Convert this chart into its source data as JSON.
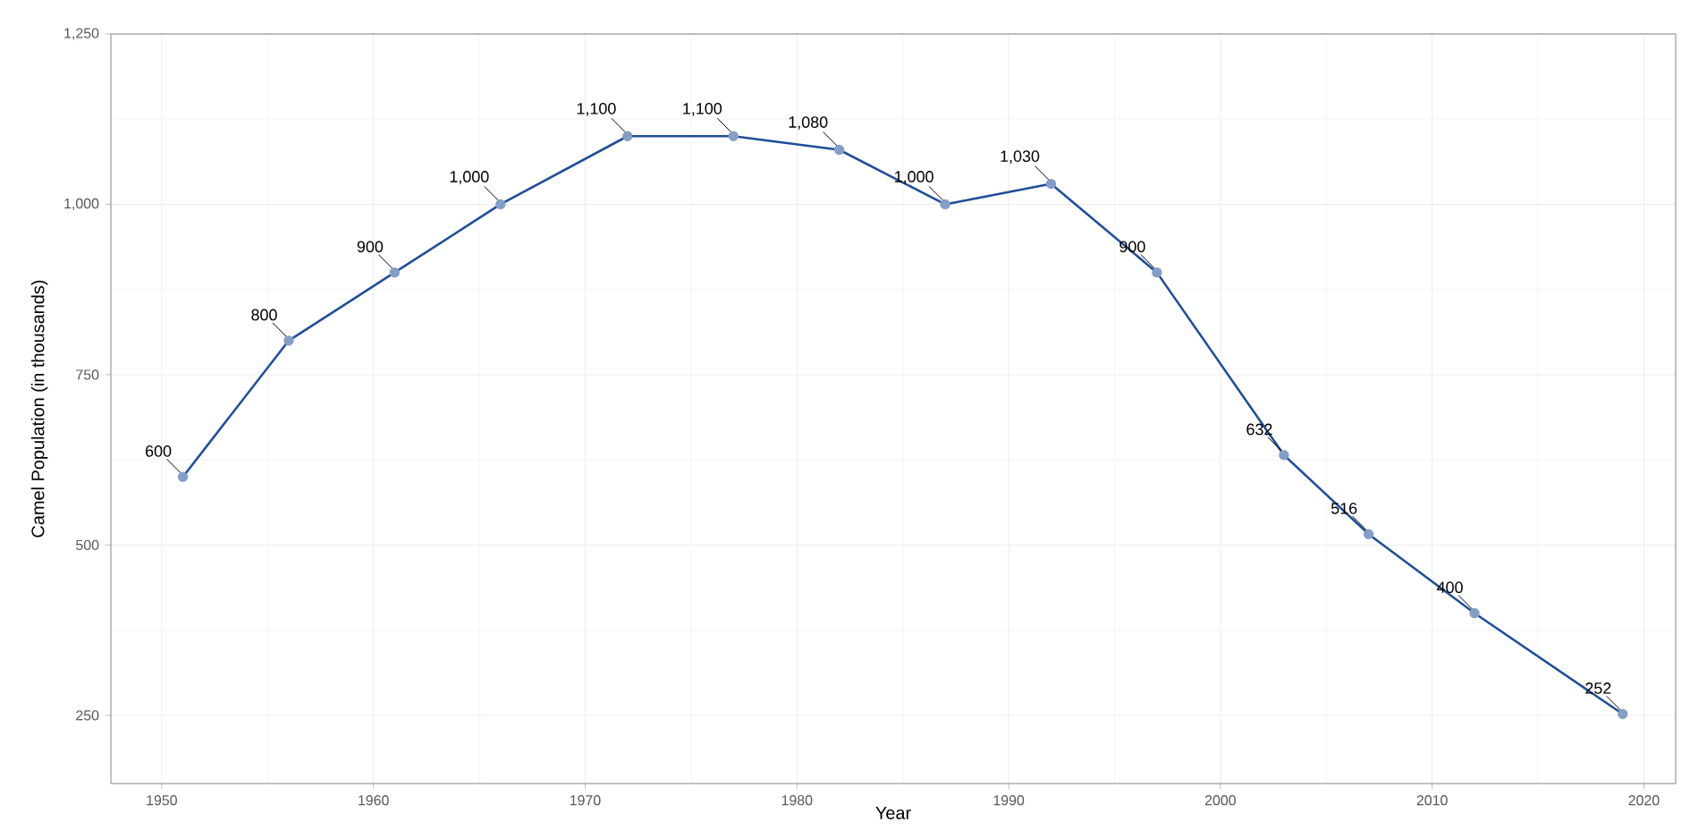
{
  "chart_data": {
    "type": "line",
    "xlabel": "Year",
    "ylabel": "Camel Population (in thousands)",
    "x": [
      1951,
      1956,
      1961,
      1966,
      1972,
      1977,
      1982,
      1987,
      1992,
      1997,
      2003,
      2007,
      2012,
      2019
    ],
    "series": [
      {
        "color": "#1f4e99",
        "values": [
          600,
          800,
          900,
          1000,
          1100,
          1100,
          1080,
          1000,
          1030,
          900,
          632,
          516,
          400,
          252
        ],
        "value_labels": [
          "600",
          "800",
          "900",
          "1,000",
          "1,100",
          "1,100",
          "1,080",
          "1,000",
          "1,030",
          "900",
          "632",
          "516",
          "400",
          "252"
        ]
      }
    ],
    "xlim": [
      1947.6,
      2021.5
    ],
    "ylim": [
      150,
      1250
    ],
    "xticks": [
      1950,
      1960,
      1970,
      1980,
      1990,
      2000,
      2010,
      2020
    ],
    "yticks": [
      250,
      500,
      750,
      {
        "value": 1000,
        "label": "1,000"
      },
      {
        "value": 1250,
        "label": "1,250"
      }
    ],
    "grid": true,
    "marker": "circle",
    "line_style": "solid"
  }
}
